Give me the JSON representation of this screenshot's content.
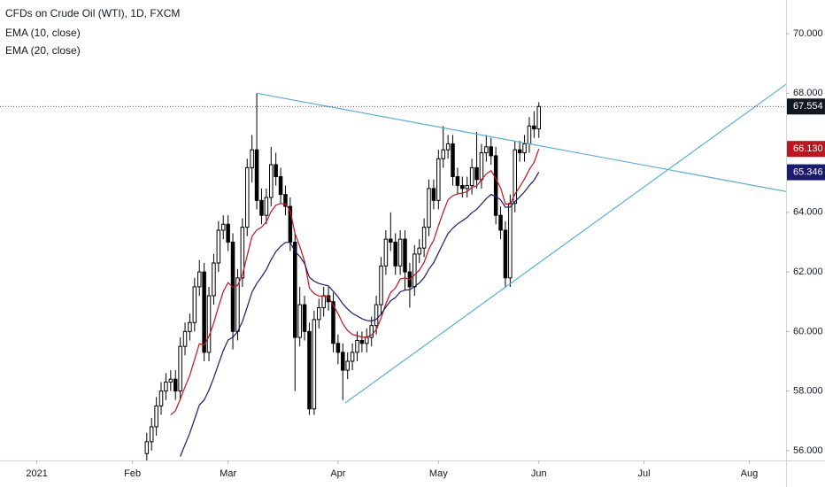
{
  "chart_data": {
    "type": "candlestick",
    "title": "CFDs on Crude Oil (WTI), 1D, FXCM",
    "up_color": "#ffffff",
    "down_color": "#000000",
    "open": [
      55.9,
      56.3,
      56.8,
      57.5,
      58.0,
      58.3,
      58.4,
      58.0,
      59.5,
      60.0,
      60.3,
      61.5,
      62.0,
      59.3,
      61.2,
      62.3,
      63.4,
      63.6,
      63.0,
      60.0,
      61.8,
      63.5,
      65.5,
      66.1,
      64.4,
      63.9,
      64.5,
      65.6,
      65.2,
      64.6,
      64.2,
      63.0,
      59.8,
      60.9,
      60.0,
      57.4,
      60.4,
      60.8,
      61.2,
      61.0,
      59.6,
      59.3,
      58.7,
      59.0,
      59.3,
      59.7,
      59.6,
      59.8,
      60.2,
      60.9,
      62.2,
      63.1,
      63.0,
      62.2,
      63.1,
      62.0,
      61.5,
      62.6,
      62.8,
      63.5,
      64.8,
      64.4,
      65.8,
      66.1,
      66.3,
      65.2,
      64.9,
      64.8,
      64.9,
      65.5,
      65.1,
      66.0,
      66.2,
      65.9,
      63.9,
      63.4,
      61.8,
      64.3,
      66.1,
      66.0,
      66.3,
      66.9,
      66.8
    ],
    "high": [
      56.6,
      57.1,
      57.8,
      58.3,
      58.6,
      58.7,
      58.7,
      59.8,
      60.3,
      60.6,
      61.8,
      62.4,
      62.3,
      61.5,
      62.6,
      63.7,
      63.9,
      63.9,
      63.3,
      62.1,
      63.8,
      65.8,
      66.6,
      68.0,
      64.8,
      64.8,
      66.2,
      66.0,
      65.5,
      64.9,
      64.5,
      63.3,
      61.5,
      61.2,
      60.3,
      60.7,
      61.1,
      61.5,
      61.5,
      61.3,
      59.9,
      59.6,
      59.3,
      59.6,
      60.0,
      60.0,
      60.1,
      60.5,
      61.2,
      62.5,
      63.4,
      64.0,
      63.3,
      63.4,
      63.4,
      62.3,
      62.9,
      63.1,
      63.8,
      65.1,
      65.1,
      66.1,
      66.9,
      66.6,
      66.6,
      65.5,
      65.2,
      65.2,
      65.8,
      66.7,
      66.3,
      66.6,
      66.5,
      66.2,
      64.2,
      63.7,
      64.6,
      66.4,
      66.4,
      66.6,
      67.2,
      67.4,
      67.7
    ],
    "low": [
      55.6,
      56.0,
      56.5,
      57.2,
      57.7,
      58.0,
      57.7,
      57.7,
      59.2,
      59.7,
      60.0,
      61.2,
      59.0,
      59.0,
      60.9,
      62.0,
      63.1,
      62.7,
      59.4,
      59.7,
      61.5,
      63.2,
      65.0,
      64.1,
      63.6,
      63.6,
      64.2,
      64.9,
      64.3,
      63.9,
      62.7,
      58.0,
      59.5,
      59.7,
      57.2,
      57.2,
      60.1,
      60.5,
      60.7,
      59.3,
      58.9,
      57.7,
      58.4,
      58.7,
      59.0,
      59.3,
      59.3,
      59.5,
      59.9,
      60.6,
      61.9,
      62.7,
      61.9,
      61.9,
      61.4,
      60.8,
      61.2,
      62.3,
      62.5,
      63.2,
      64.1,
      64.1,
      65.5,
      65.8,
      64.9,
      64.6,
      64.5,
      64.5,
      64.6,
      64.8,
      64.8,
      65.7,
      65.6,
      63.6,
      63.1,
      61.5,
      61.5,
      64.0,
      65.7,
      65.7,
      66.0,
      66.5,
      66.5
    ],
    "close": [
      56.3,
      56.8,
      57.5,
      58.0,
      58.3,
      58.4,
      58.0,
      59.5,
      60.0,
      60.3,
      61.5,
      62.0,
      59.3,
      61.2,
      62.3,
      63.4,
      63.6,
      63.0,
      60.0,
      61.8,
      63.5,
      65.5,
      66.1,
      64.4,
      63.9,
      64.5,
      65.6,
      65.2,
      64.6,
      64.2,
      63.0,
      59.8,
      60.9,
      60.0,
      57.4,
      60.4,
      60.8,
      61.2,
      61.0,
      59.6,
      59.3,
      58.7,
      59.0,
      59.3,
      59.7,
      59.6,
      59.8,
      60.2,
      60.9,
      62.2,
      63.1,
      63.0,
      62.2,
      63.1,
      62.0,
      61.5,
      62.6,
      62.8,
      63.5,
      64.8,
      64.4,
      65.8,
      66.1,
      66.3,
      65.2,
      64.9,
      64.8,
      64.9,
      65.5,
      65.1,
      66.0,
      66.2,
      65.9,
      63.9,
      63.4,
      61.8,
      64.3,
      66.1,
      66.0,
      66.3,
      66.9,
      66.8,
      67.554
    ],
    "series": [
      {
        "name": "EMA (10, close)",
        "color": "#c0141e",
        "values": [
          null,
          null,
          null,
          null,
          null,
          57.2,
          57.34,
          57.73,
          58.14,
          58.53,
          59.06,
          59.59,
          59.54,
          59.84,
          60.28,
          60.84,
          61.34,
          61.64,
          61.49,
          61.55,
          61.9,
          62.55,
          63.19,
          63.41,
          63.5,
          63.68,
          64.03,
          64.24,
          64.3,
          64.28,
          64.05,
          63.29,
          62.86,
          62.35,
          61.46,
          61.27,
          61.19,
          61.19,
          61.16,
          60.88,
          60.6,
          60.26,
          60.03,
          59.9,
          59.86,
          59.81,
          59.81,
          59.88,
          60.06,
          60.45,
          60.93,
          61.3,
          61.46,
          61.76,
          61.8,
          61.75,
          61.9,
          62.06,
          62.32,
          62.77,
          63.06,
          63.55,
          64.01,
          64.42,
          64.56,
          64.62,
          64.65,
          64.69,
          64.84,
          64.89,
          65.09,
          65.29,
          65.4,
          65.13,
          64.82,
          64.28,
          64.28,
          64.61,
          64.86,
          65.12,
          65.44,
          65.68,
          66.13
        ]
      },
      {
        "name": "EMA (20, close)",
        "color": "#1a1a6e",
        "values": [
          null,
          null,
          null,
          null,
          null,
          null,
          null,
          55.8,
          56.2,
          56.59,
          57.06,
          57.53,
          57.7,
          58.03,
          58.44,
          58.91,
          59.36,
          59.71,
          59.81,
          60.0,
          60.33,
          60.82,
          61.32,
          61.61,
          61.83,
          62.08,
          62.41,
          62.68,
          62.86,
          62.99,
          62.99,
          62.69,
          62.52,
          62.28,
          61.82,
          61.69,
          61.61,
          61.57,
          61.53,
          61.35,
          61.16,
          60.93,
          60.75,
          60.61,
          60.52,
          60.43,
          60.37,
          60.35,
          60.41,
          60.58,
          60.82,
          61.03,
          61.14,
          61.33,
          61.39,
          61.4,
          61.51,
          61.63,
          61.81,
          62.09,
          62.31,
          62.64,
          62.97,
          63.29,
          63.47,
          63.61,
          63.72,
          63.83,
          63.99,
          64.1,
          64.28,
          64.46,
          64.6,
          64.53,
          64.42,
          64.17,
          64.18,
          64.36,
          64.52,
          64.69,
          64.9,
          65.08,
          65.35
        ]
      }
    ],
    "price_labels": [
      {
        "value": 67.554,
        "label": "67.554",
        "color": "#131722"
      },
      {
        "value": 66.13,
        "label": "66.130",
        "color": "#c0141e"
      },
      {
        "value": 65.346,
        "label": "65.346",
        "color": "#1a1a6e"
      }
    ],
    "trendlines": [
      {
        "color": "#5aaedc",
        "x": [
          23,
          133.7
        ],
        "y": [
          68.0,
          64.7
        ]
      },
      {
        "color": "#5aaedc",
        "x": [
          41.5,
          133.7
        ],
        "y": [
          57.6,
          68.3
        ]
      }
    ],
    "xlim": [
      -30.7,
      133.7
    ],
    "xticks": [
      {
        "value": -23,
        "label": "2021"
      },
      {
        "value": -3,
        "label": "Feb"
      },
      {
        "value": 17,
        "label": "Mar"
      },
      {
        "value": 40,
        "label": "Apr"
      },
      {
        "value": 61,
        "label": "May"
      },
      {
        "value": 82,
        "label": "Jun"
      },
      {
        "value": 104,
        "label": "Jul"
      },
      {
        "value": 126,
        "label": "Aug"
      }
    ],
    "ylim": [
      55.67,
      71.13
    ],
    "yticks": [
      {
        "value": 56,
        "label": "56.000"
      },
      {
        "value": 58,
        "label": "58.000"
      },
      {
        "value": 60,
        "label": "60.000"
      },
      {
        "value": 62,
        "label": "62.000"
      },
      {
        "value": 64,
        "label": "64.000"
      },
      {
        "value": 66,
        "label": "66.000"
      },
      {
        "value": 68,
        "label": "68.000"
      },
      {
        "value": 70,
        "label": "70.000"
      }
    ]
  }
}
